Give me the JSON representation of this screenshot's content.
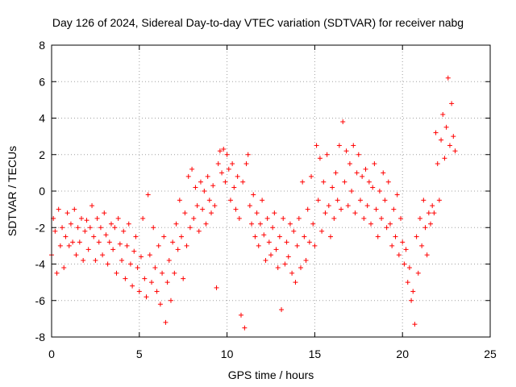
{
  "chart_data": {
    "type": "scatter",
    "title": "Day 126 of 2024, Sidereal Day-to-day VTEC variation (SDTVAR) for receiver nabg",
    "xlabel": "GPS time / hours",
    "ylabel": "SDTVAR / TECUs",
    "xlim": [
      0,
      25
    ],
    "ylim": [
      -8,
      8
    ],
    "xticks": [
      0,
      5,
      10,
      15,
      20,
      25
    ],
    "yticks": [
      -8,
      -6,
      -4,
      -2,
      0,
      2,
      4,
      6,
      8
    ],
    "grid": true,
    "marker": "+",
    "color": "#ff0000",
    "series": [
      {
        "name": "nabg",
        "points": [
          [
            0.0,
            -3.5
          ],
          [
            0.1,
            -1.5
          ],
          [
            0.2,
            -2.2
          ],
          [
            0.3,
            -4.5
          ],
          [
            0.4,
            -1.0
          ],
          [
            0.5,
            -3.0
          ],
          [
            0.6,
            -2.0
          ],
          [
            0.7,
            -4.2
          ],
          [
            0.8,
            -2.5
          ],
          [
            0.9,
            -1.2
          ],
          [
            1.0,
            -3.0
          ],
          [
            1.1,
            -1.8
          ],
          [
            1.2,
            -2.8
          ],
          [
            1.3,
            -1.0
          ],
          [
            1.4,
            -3.5
          ],
          [
            1.5,
            -2.0
          ],
          [
            1.6,
            -2.8
          ],
          [
            1.7,
            -1.5
          ],
          [
            1.8,
            -3.8
          ],
          [
            1.9,
            -2.2
          ],
          [
            2.0,
            -1.6
          ],
          [
            2.1,
            -3.2
          ],
          [
            2.2,
            -2.0
          ],
          [
            2.3,
            -0.8
          ],
          [
            2.4,
            -2.5
          ],
          [
            2.5,
            -3.8
          ],
          [
            2.6,
            -1.5
          ],
          [
            2.7,
            -2.8
          ],
          [
            2.8,
            -2.0
          ],
          [
            2.9,
            -3.5
          ],
          [
            3.0,
            -1.2
          ],
          [
            3.1,
            -2.4
          ],
          [
            3.2,
            -4.0
          ],
          [
            3.3,
            -2.8
          ],
          [
            3.4,
            -1.8
          ],
          [
            3.5,
            -3.2
          ],
          [
            3.6,
            -2.0
          ],
          [
            3.7,
            -4.5
          ],
          [
            3.8,
            -1.5
          ],
          [
            3.9,
            -2.9
          ],
          [
            4.0,
            -3.8
          ],
          [
            4.1,
            -2.2
          ],
          [
            4.2,
            -4.8
          ],
          [
            4.3,
            -3.0
          ],
          [
            4.4,
            -1.8
          ],
          [
            4.5,
            -4.0
          ],
          [
            4.6,
            -5.2
          ],
          [
            4.7,
            -3.3
          ],
          [
            4.8,
            -2.5
          ],
          [
            4.9,
            -4.2
          ],
          [
            5.0,
            -5.5
          ],
          [
            5.1,
            -3.6
          ],
          [
            5.2,
            -1.5
          ],
          [
            5.3,
            -4.8
          ],
          [
            5.4,
            -5.8
          ],
          [
            5.5,
            -0.2
          ],
          [
            5.6,
            -3.5
          ],
          [
            5.7,
            -5.0
          ],
          [
            5.8,
            -2.0
          ],
          [
            5.9,
            -4.2
          ],
          [
            6.0,
            -5.5
          ],
          [
            6.1,
            -3.0
          ],
          [
            6.2,
            -6.2
          ],
          [
            6.3,
            -4.5
          ],
          [
            6.4,
            -2.5
          ],
          [
            6.5,
            -7.2
          ],
          [
            6.6,
            -5.0
          ],
          [
            6.7,
            -3.8
          ],
          [
            6.8,
            -6.0
          ],
          [
            6.9,
            -2.8
          ],
          [
            7.0,
            -4.5
          ],
          [
            7.1,
            -1.8
          ],
          [
            7.2,
            -3.2
          ],
          [
            7.3,
            -0.5
          ],
          [
            7.4,
            -2.5
          ],
          [
            7.5,
            -4.8
          ],
          [
            7.6,
            -1.2
          ],
          [
            7.7,
            -3.0
          ],
          [
            7.8,
            0.8
          ],
          [
            7.9,
            -2.0
          ],
          [
            8.0,
            1.2
          ],
          [
            8.1,
            -1.5
          ],
          [
            8.2,
            0.2
          ],
          [
            8.3,
            -0.8
          ],
          [
            8.4,
            -2.2
          ],
          [
            8.5,
            0.5
          ],
          [
            8.6,
            -1.0
          ],
          [
            8.7,
            0.0
          ],
          [
            8.8,
            -1.8
          ],
          [
            8.9,
            0.8
          ],
          [
            9.0,
            -0.5
          ],
          [
            9.1,
            -1.2
          ],
          [
            9.2,
            0.3
          ],
          [
            9.3,
            -0.8
          ],
          [
            9.4,
            -5.3
          ],
          [
            9.5,
            1.5
          ],
          [
            9.6,
            2.2
          ],
          [
            9.7,
            1.0
          ],
          [
            9.8,
            2.3
          ],
          [
            9.9,
            0.5
          ],
          [
            10.0,
            2.0
          ],
          [
            10.1,
            1.2
          ],
          [
            10.2,
            -0.5
          ],
          [
            10.3,
            1.5
          ],
          [
            10.4,
            0.2
          ],
          [
            10.5,
            -1.0
          ],
          [
            10.6,
            0.8
          ],
          [
            10.7,
            -1.5
          ],
          [
            10.8,
            -6.8
          ],
          [
            10.9,
            0.5
          ],
          [
            11.0,
            -7.5
          ],
          [
            11.1,
            1.5
          ],
          [
            11.2,
            2.0
          ],
          [
            11.3,
            -0.8
          ],
          [
            11.4,
            -1.8
          ],
          [
            11.5,
            -0.2
          ],
          [
            11.6,
            -2.5
          ],
          [
            11.7,
            -1.2
          ],
          [
            11.8,
            -3.0
          ],
          [
            11.9,
            -1.8
          ],
          [
            12.0,
            -0.5
          ],
          [
            12.1,
            -2.4
          ],
          [
            12.2,
            -3.8
          ],
          [
            12.3,
            -1.5
          ],
          [
            12.4,
            -2.8
          ],
          [
            12.5,
            -3.5
          ],
          [
            12.6,
            -2.0
          ],
          [
            12.7,
            -1.2
          ],
          [
            12.8,
            -3.2
          ],
          [
            12.9,
            -4.2
          ],
          [
            13.0,
            -2.5
          ],
          [
            13.1,
            -6.5
          ],
          [
            13.2,
            -1.5
          ],
          [
            13.3,
            -4.0
          ],
          [
            13.4,
            -2.8
          ],
          [
            13.5,
            -3.6
          ],
          [
            13.6,
            -1.8
          ],
          [
            13.7,
            -4.5
          ],
          [
            13.8,
            -2.2
          ],
          [
            13.9,
            -5.0
          ],
          [
            14.0,
            -3.0
          ],
          [
            14.1,
            -1.5
          ],
          [
            14.2,
            -4.2
          ],
          [
            14.3,
            0.5
          ],
          [
            14.4,
            -2.5
          ],
          [
            14.5,
            -3.8
          ],
          [
            14.6,
            -1.0
          ],
          [
            14.7,
            -2.8
          ],
          [
            14.8,
            0.8
          ],
          [
            14.9,
            -1.8
          ],
          [
            15.0,
            -3.0
          ],
          [
            15.1,
            2.5
          ],
          [
            15.2,
            -0.5
          ],
          [
            15.3,
            1.8
          ],
          [
            15.4,
            -2.2
          ],
          [
            15.5,
            0.5
          ],
          [
            15.6,
            -1.2
          ],
          [
            15.7,
            2.0
          ],
          [
            15.8,
            -0.8
          ],
          [
            15.9,
            -2.5
          ],
          [
            16.0,
            0.2
          ],
          [
            16.1,
            -1.5
          ],
          [
            16.2,
            1.0
          ],
          [
            16.3,
            -0.5
          ],
          [
            16.4,
            2.5
          ],
          [
            16.5,
            -1.0
          ],
          [
            16.6,
            3.8
          ],
          [
            16.7,
            0.5
          ],
          [
            16.8,
            2.2
          ],
          [
            16.9,
            -0.8
          ],
          [
            17.0,
            1.5
          ],
          [
            17.1,
            0.0
          ],
          [
            17.2,
            2.5
          ],
          [
            17.3,
            -1.2
          ],
          [
            17.4,
            1.0
          ],
          [
            17.5,
            2.0
          ],
          [
            17.6,
            -0.5
          ],
          [
            17.7,
            0.8
          ],
          [
            17.8,
            -1.5
          ],
          [
            17.9,
            1.2
          ],
          [
            18.0,
            -0.8
          ],
          [
            18.1,
            0.5
          ],
          [
            18.2,
            -1.8
          ],
          [
            18.3,
            0.2
          ],
          [
            18.4,
            1.5
          ],
          [
            18.5,
            -1.0
          ],
          [
            18.6,
            -2.5
          ],
          [
            18.7,
            0.0
          ],
          [
            18.8,
            -1.5
          ],
          [
            18.9,
            1.0
          ],
          [
            19.0,
            -0.5
          ],
          [
            19.1,
            -2.0
          ],
          [
            19.2,
            0.5
          ],
          [
            19.3,
            -1.8
          ],
          [
            19.4,
            -3.0
          ],
          [
            19.5,
            -1.0
          ],
          [
            19.6,
            -2.5
          ],
          [
            19.7,
            -0.2
          ],
          [
            19.8,
            -3.5
          ],
          [
            19.9,
            -1.5
          ],
          [
            20.0,
            -2.8
          ],
          [
            20.1,
            -4.0
          ],
          [
            20.2,
            -3.2
          ],
          [
            20.3,
            -5.0
          ],
          [
            20.4,
            -4.2
          ],
          [
            20.5,
            -6.0
          ],
          [
            20.6,
            -5.5
          ],
          [
            20.7,
            -7.3
          ],
          [
            20.8,
            -2.5
          ],
          [
            20.9,
            -4.5
          ],
          [
            21.0,
            -1.5
          ],
          [
            21.1,
            -3.0
          ],
          [
            21.2,
            -0.5
          ],
          [
            21.3,
            -2.0
          ],
          [
            21.4,
            -3.5
          ],
          [
            21.5,
            -1.2
          ],
          [
            21.6,
            -1.8
          ],
          [
            21.7,
            -0.8
          ],
          [
            21.8,
            -1.2
          ],
          [
            21.9,
            3.2
          ],
          [
            22.0,
            1.5
          ],
          [
            22.1,
            -0.5
          ],
          [
            22.2,
            2.8
          ],
          [
            22.3,
            4.2
          ],
          [
            22.4,
            1.8
          ],
          [
            22.5,
            3.5
          ],
          [
            22.6,
            6.2
          ],
          [
            22.7,
            2.5
          ],
          [
            22.8,
            4.8
          ],
          [
            22.9,
            3.0
          ],
          [
            23.0,
            2.2
          ]
        ]
      }
    ]
  }
}
